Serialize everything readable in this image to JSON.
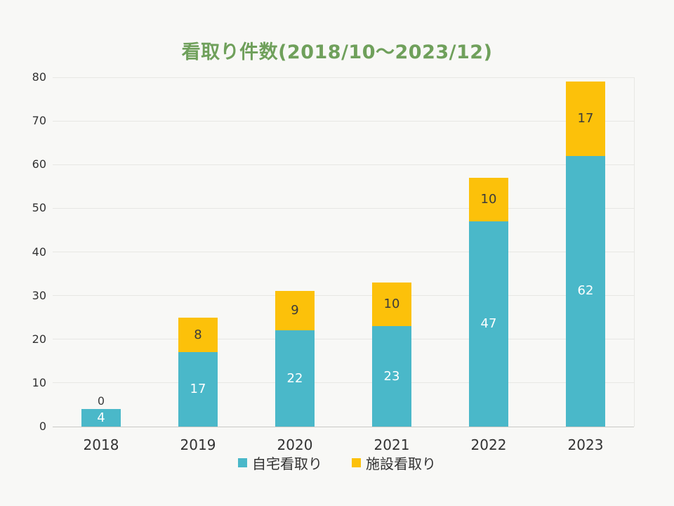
{
  "title": {
    "text": "看取り件数(2018/10～2023/12)",
    "color": "#6fa05b"
  },
  "chart_data": {
    "type": "bar",
    "stacked": true,
    "title": "看取り件数(2018/10～2023/12)",
    "categories": [
      "2018",
      "2019",
      "2020",
      "2021",
      "2022",
      "2023"
    ],
    "series": [
      {
        "key": "home-care",
        "name": "自宅看取り",
        "color": "#4ab8c9",
        "label_color": "#ffffff",
        "values": [
          4,
          17,
          22,
          23,
          47,
          62
        ]
      },
      {
        "key": "facility-care",
        "name": "施設看取り",
        "color": "#fcc10a",
        "label_color": "#3b3b3b",
        "values": [
          0,
          8,
          9,
          10,
          10,
          17
        ]
      }
    ],
    "totals": [
      4,
      25,
      31,
      33,
      57,
      79
    ],
    "ylim": [
      0,
      80
    ],
    "ytick_step": 10,
    "yticks": [
      0,
      10,
      20,
      30,
      40,
      50,
      60,
      70,
      80
    ],
    "grid": true,
    "legend_position": "bottom"
  },
  "colors": {
    "background": "#f8f8f6",
    "grid": "#e7e7e4",
    "baseline": "#c9c9c6",
    "axis_text": "#323232",
    "title_green": "#6fa05b",
    "teal": "#4ab8c9",
    "yellow": "#fcc10a"
  }
}
